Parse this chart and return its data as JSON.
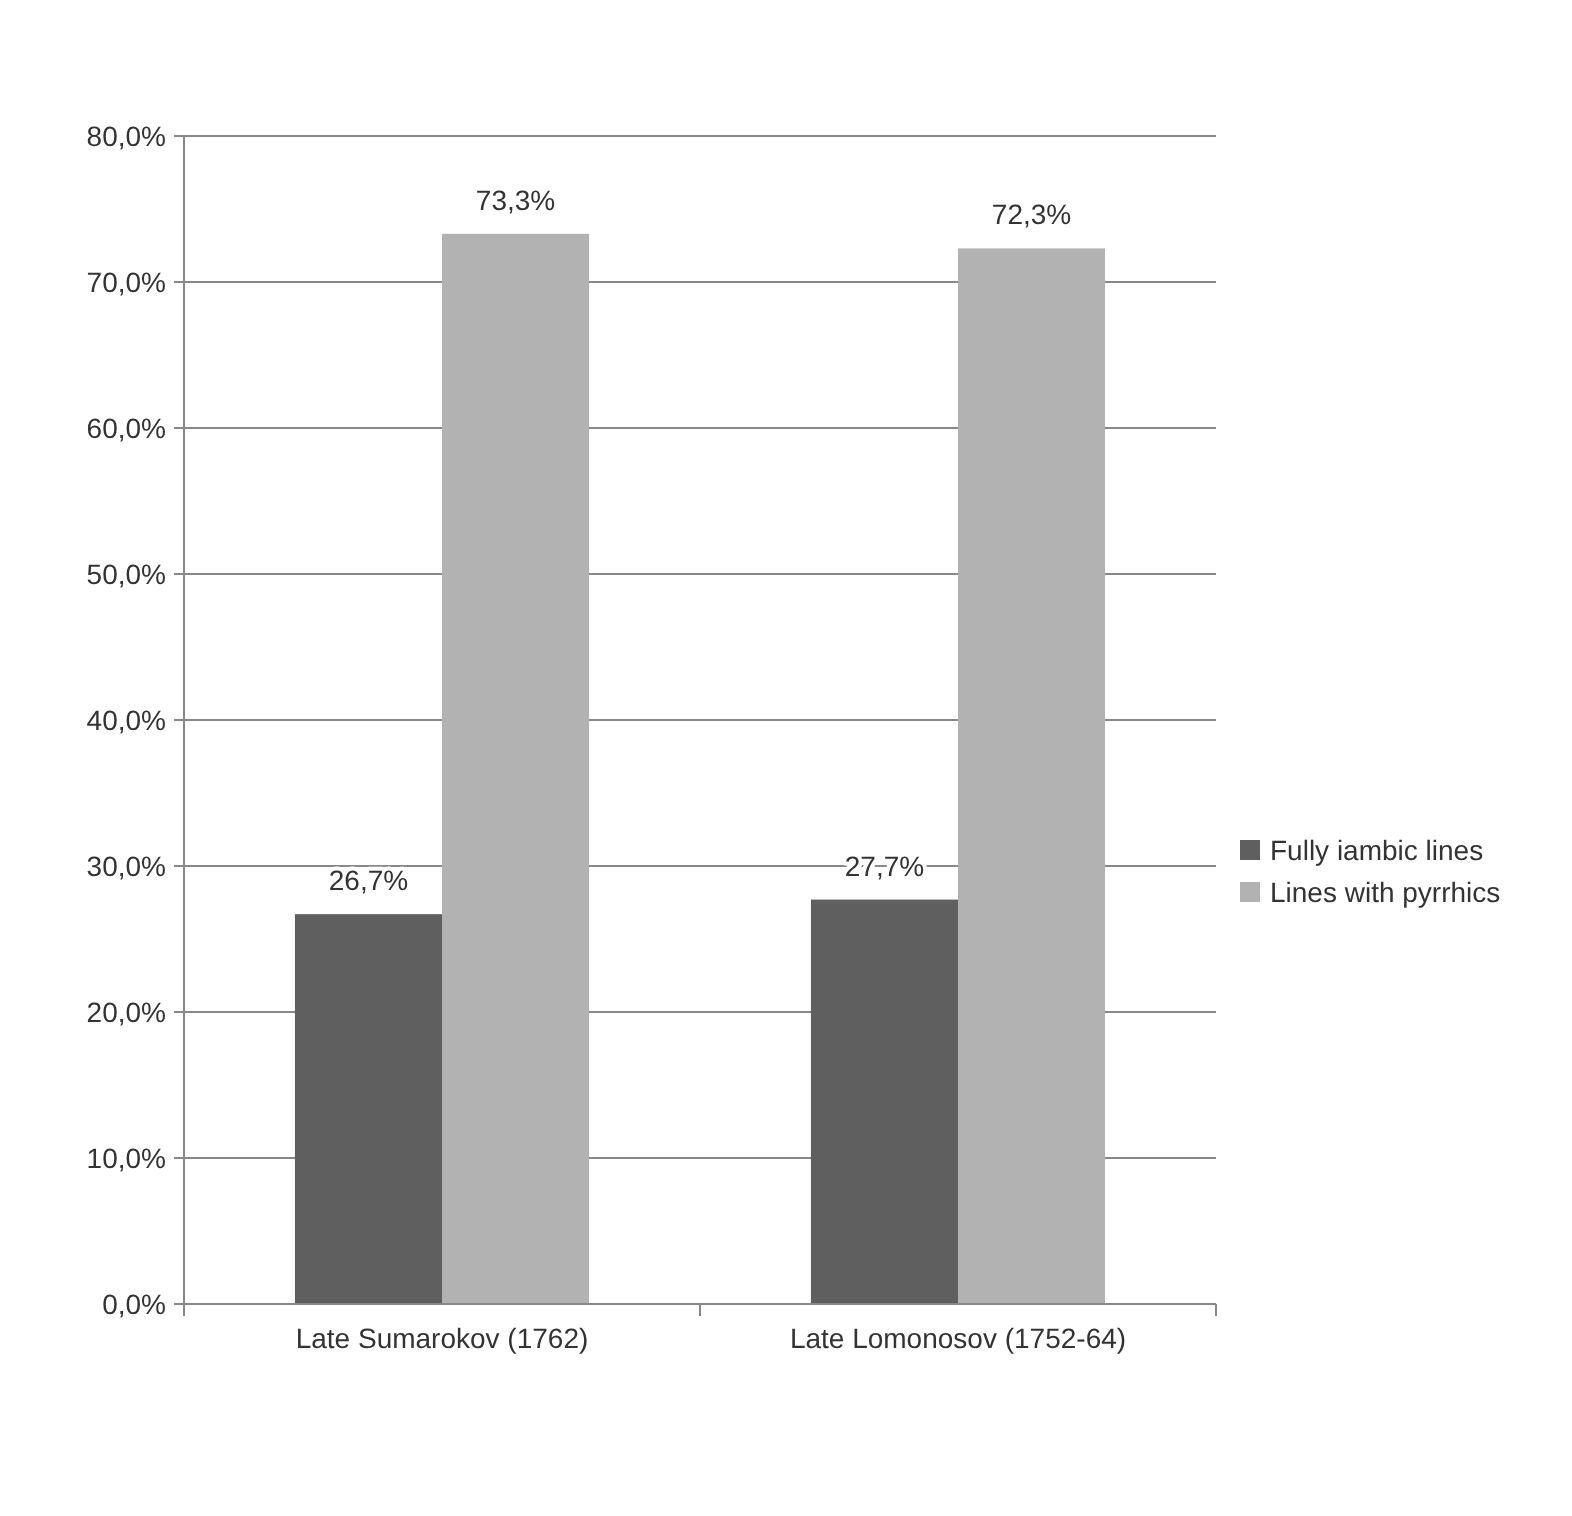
{
  "chart_data": {
    "type": "bar",
    "categories": [
      "Late Sumarokov (1762)",
      "Late Lomonosov (1752-64)"
    ],
    "series": [
      {
        "name": "Fully iambic lines",
        "color": "#5f5f5f",
        "values": [
          26.7,
          27.7
        ],
        "value_labels": [
          "26,7%",
          "27,7%"
        ]
      },
      {
        "name": "Lines with pyrrhics",
        "color": "#b2b2b2",
        "values": [
          73.3,
          72.3
        ],
        "value_labels": [
          "73,3%",
          "72,3%"
        ]
      }
    ],
    "ylim": [
      0,
      80
    ],
    "yticks": [
      {
        "value": 0,
        "label": "0,0%"
      },
      {
        "value": 10,
        "label": "10,0%"
      },
      {
        "value": 20,
        "label": "20,0%"
      },
      {
        "value": 30,
        "label": "30,0%"
      },
      {
        "value": 40,
        "label": "40,0%"
      },
      {
        "value": 50,
        "label": "50,0%"
      },
      {
        "value": 60,
        "label": "60,0%"
      },
      {
        "value": 70,
        "label": "70,0%"
      },
      {
        "value": 80,
        "label": "80,0%"
      }
    ],
    "grid": "y",
    "legend": "right"
  }
}
